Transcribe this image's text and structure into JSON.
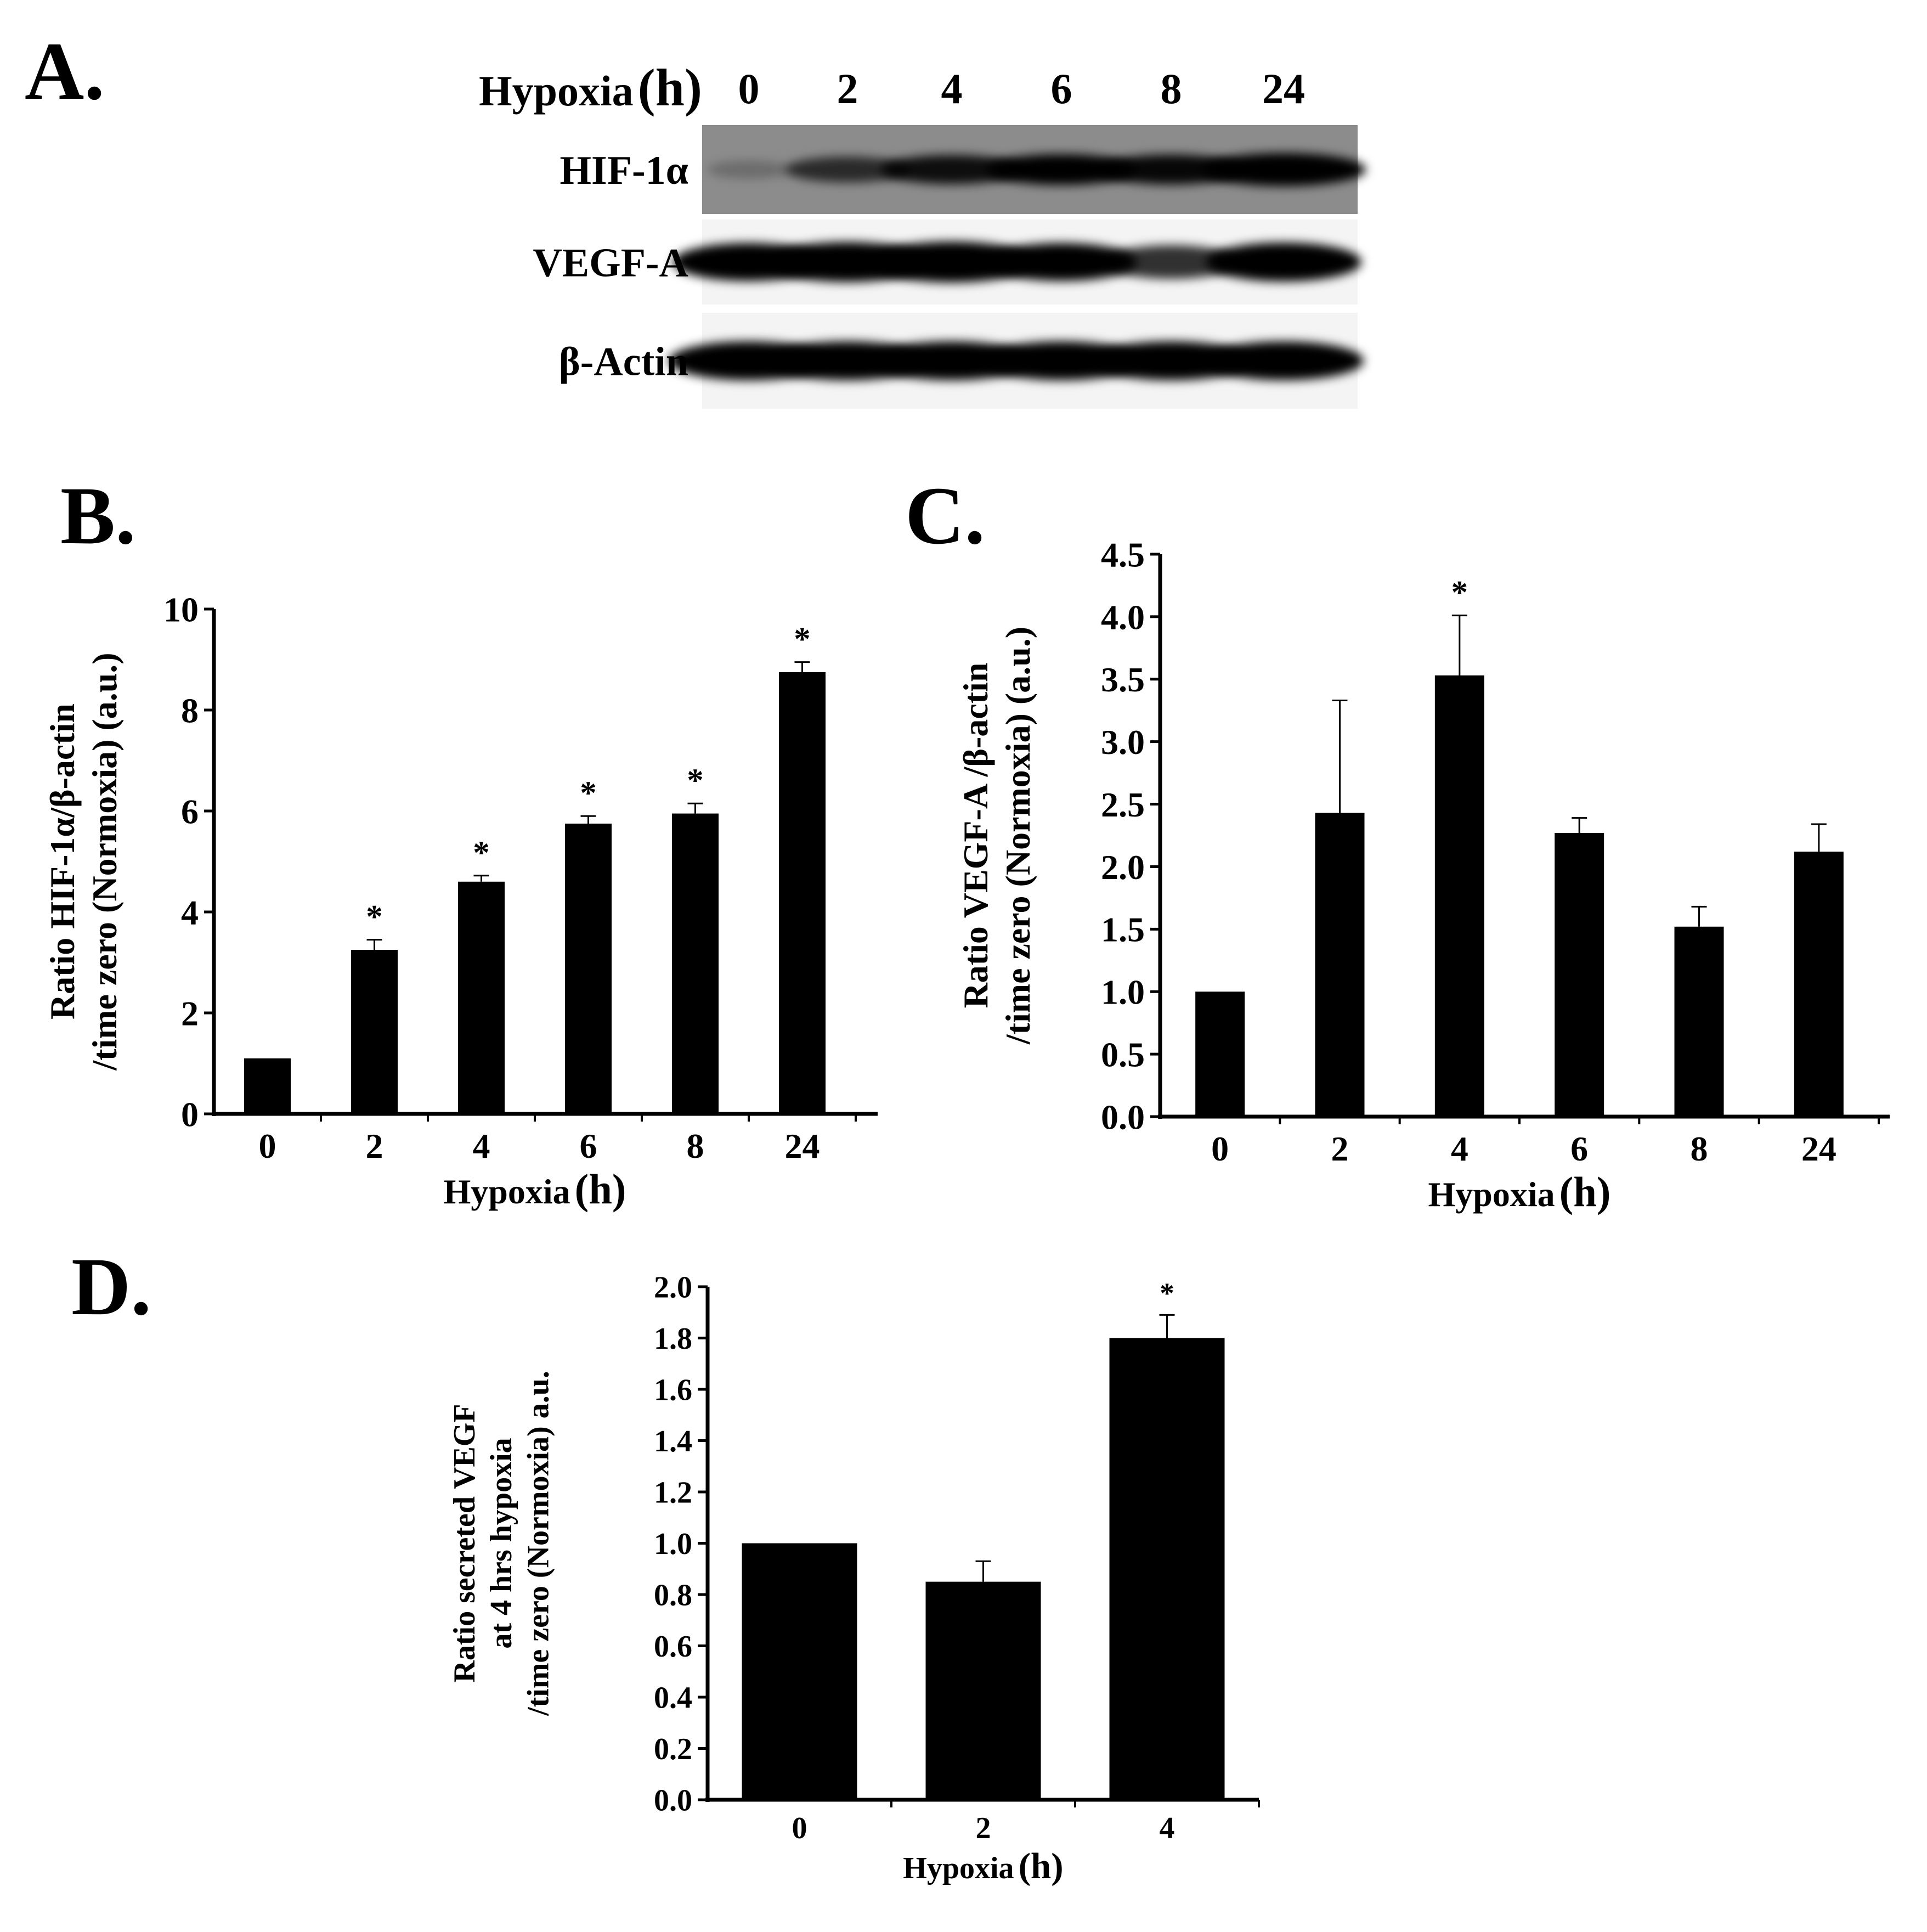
{
  "panels": {
    "a": "A.",
    "b": "B.",
    "c": "C.",
    "d": "D."
  },
  "blot": {
    "header_label": "Hypoxia",
    "header_unit": "(h)",
    "timepoints": [
      "0",
      "2",
      "4",
      "6",
      "8",
      "24"
    ],
    "rows": [
      {
        "label": "HIF-1α",
        "background": "#8c8c8c",
        "intensity": [
          0.08,
          0.55,
          0.75,
          0.85,
          0.8,
          1.0
        ]
      },
      {
        "label": "VEGF-A",
        "background": "#f4f4f4",
        "intensity": [
          0.85,
          0.95,
          1.0,
          0.85,
          0.65,
          0.9
        ]
      },
      {
        "label": "β-Actin",
        "background": "#f4f4f4",
        "intensity": [
          0.95,
          0.95,
          0.95,
          0.95,
          0.95,
          0.95
        ]
      }
    ]
  },
  "chart_data": [
    {
      "id": "B",
      "type": "bar",
      "categories": [
        "0",
        "2",
        "4",
        "6",
        "8",
        "24"
      ],
      "values": [
        1.1,
        3.25,
        4.6,
        5.75,
        5.95,
        8.75
      ],
      "errors": [
        0,
        0.2,
        0.12,
        0.15,
        0.2,
        0.2
      ],
      "significant": [
        false,
        true,
        true,
        true,
        true,
        true
      ],
      "significance_marker": "*",
      "xlabel": "Hypoxia",
      "xlabel_unit": "(h)",
      "ylabel_lines": [
        "Ratio HIF-1α/β-actin",
        "/time zero (Normoxia) (a.u.)"
      ],
      "ylim": [
        0,
        10
      ],
      "yticks": [
        "0",
        "2",
        "4",
        "6",
        "8",
        "10"
      ]
    },
    {
      "id": "C",
      "type": "bar",
      "categories": [
        "0",
        "2",
        "4",
        "6",
        "8",
        "24"
      ],
      "values": [
        1.0,
        2.43,
        3.53,
        2.27,
        1.52,
        2.12
      ],
      "errors": [
        0,
        0.9,
        0.48,
        0.12,
        0.16,
        0.22
      ],
      "significant": [
        false,
        false,
        true,
        false,
        false,
        false
      ],
      "significance_marker": "*",
      "xlabel": "Hypoxia",
      "xlabel_unit": "(h)",
      "ylabel_lines": [
        "Ratio VEGF-A /β-actin",
        "/time zero (Normoxia) (a.u.)"
      ],
      "ylim": [
        0,
        4.5
      ],
      "yticks": [
        "0.0",
        "0.5",
        "1.0",
        "1.5",
        "2.0",
        "2.5",
        "3.0",
        "3.5",
        "4.0",
        "4.5"
      ]
    },
    {
      "id": "D",
      "type": "bar",
      "categories": [
        "0",
        "2",
        "4"
      ],
      "values": [
        1.0,
        0.85,
        1.8
      ],
      "errors": [
        0,
        0.08,
        0.09
      ],
      "significant": [
        false,
        false,
        true
      ],
      "significance_marker": "*",
      "xlabel": "Hypoxia",
      "xlabel_unit": "(h)",
      "ylabel_lines": [
        "Ratio secreted VEGF",
        "at 4 hrs hypoxia",
        "/time zero (Normoxia) a.u."
      ],
      "ylim": [
        0,
        2.0
      ],
      "yticks": [
        "0.0",
        "0.2",
        "0.4",
        "0.6",
        "0.8",
        "1.0",
        "1.2",
        "1.4",
        "1.6",
        "1.8",
        "2.0"
      ]
    }
  ]
}
